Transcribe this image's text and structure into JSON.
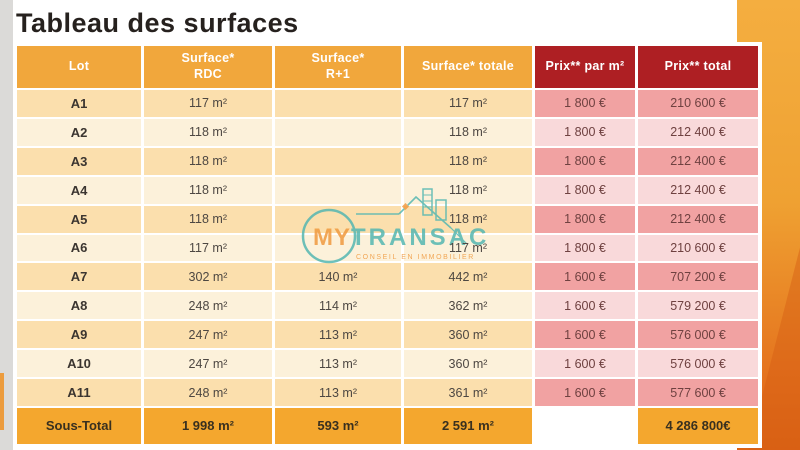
{
  "title": "Tableau des surfaces",
  "table": {
    "columns": [
      "Lot",
      "Surface*\nRDC",
      "Surface*\nR+1",
      "Surface* totale",
      "Prix** par m²",
      "Prix** total"
    ],
    "rows": [
      {
        "lot": "A1",
        "rdc": "117 m²",
        "r1": "",
        "total": "117 m²",
        "prix_m2": "1 800 €",
        "prix_total": "210 600 €"
      },
      {
        "lot": "A2",
        "rdc": "118 m²",
        "r1": "",
        "total": "118 m²",
        "prix_m2": "1 800 €",
        "prix_total": "212 400 €"
      },
      {
        "lot": "A3",
        "rdc": "118 m²",
        "r1": "",
        "total": "118 m²",
        "prix_m2": "1 800 €",
        "prix_total": "212 400 €"
      },
      {
        "lot": "A4",
        "rdc": "118 m²",
        "r1": "",
        "total": "118 m²",
        "prix_m2": "1 800 €",
        "prix_total": "212 400 €"
      },
      {
        "lot": "A5",
        "rdc": "118 m²",
        "r1": "",
        "total": "118 m²",
        "prix_m2": "1 800 €",
        "prix_total": "212 400 €"
      },
      {
        "lot": "A6",
        "rdc": "117 m²",
        "r1": "",
        "total": "117 m²",
        "prix_m2": "1 800 €",
        "prix_total": "210 600 €"
      },
      {
        "lot": "A7",
        "rdc": "302 m²",
        "r1": "140 m²",
        "total": "442 m²",
        "prix_m2": "1 600 €",
        "prix_total": "707 200 €"
      },
      {
        "lot": "A8",
        "rdc": "248 m²",
        "r1": "114 m²",
        "total": "362 m²",
        "prix_m2": "1 600 €",
        "prix_total": "579 200 €"
      },
      {
        "lot": "A9",
        "rdc": "247 m²",
        "r1": "113 m²",
        "total": "360 m²",
        "prix_m2": "1 600 €",
        "prix_total": "576 000 €"
      },
      {
        "lot": "A10",
        "rdc": "247 m²",
        "r1": "113 m²",
        "total": "360 m²",
        "prix_m2": "1 600 €",
        "prix_total": "576 000 €"
      },
      {
        "lot": "A11",
        "rdc": "248 m²",
        "r1": "113 m²",
        "total": "361 m²",
        "prix_m2": "1 600 €",
        "prix_total": "577 600 €"
      }
    ],
    "footer": {
      "label": "Sous-Total",
      "rdc": "1 998 m²",
      "r1": "593 m²",
      "total": "2 591 m²",
      "prix_m2": "",
      "prix_total": "4 286 800€"
    }
  },
  "watermark": {
    "part1": "MY",
    "part2": "TRANSAC",
    "tagline": "CONSEIL EN IMMOBILIER"
  },
  "colors": {
    "header_orange": "#f1a73c",
    "header_red": "#ae1f23",
    "row_cream_dark": "#fbdfad",
    "row_cream_light": "#fcf1da",
    "row_pink_dark": "#f1a2a2",
    "row_pink_light": "#f9d9da",
    "footer_amber": "#f4a72e",
    "accent_panel_top": "#f4ae40",
    "accent_panel_bottom": "#dc6314",
    "watermark_teal": "#55b7b1",
    "watermark_orange": "#f09a3f"
  }
}
